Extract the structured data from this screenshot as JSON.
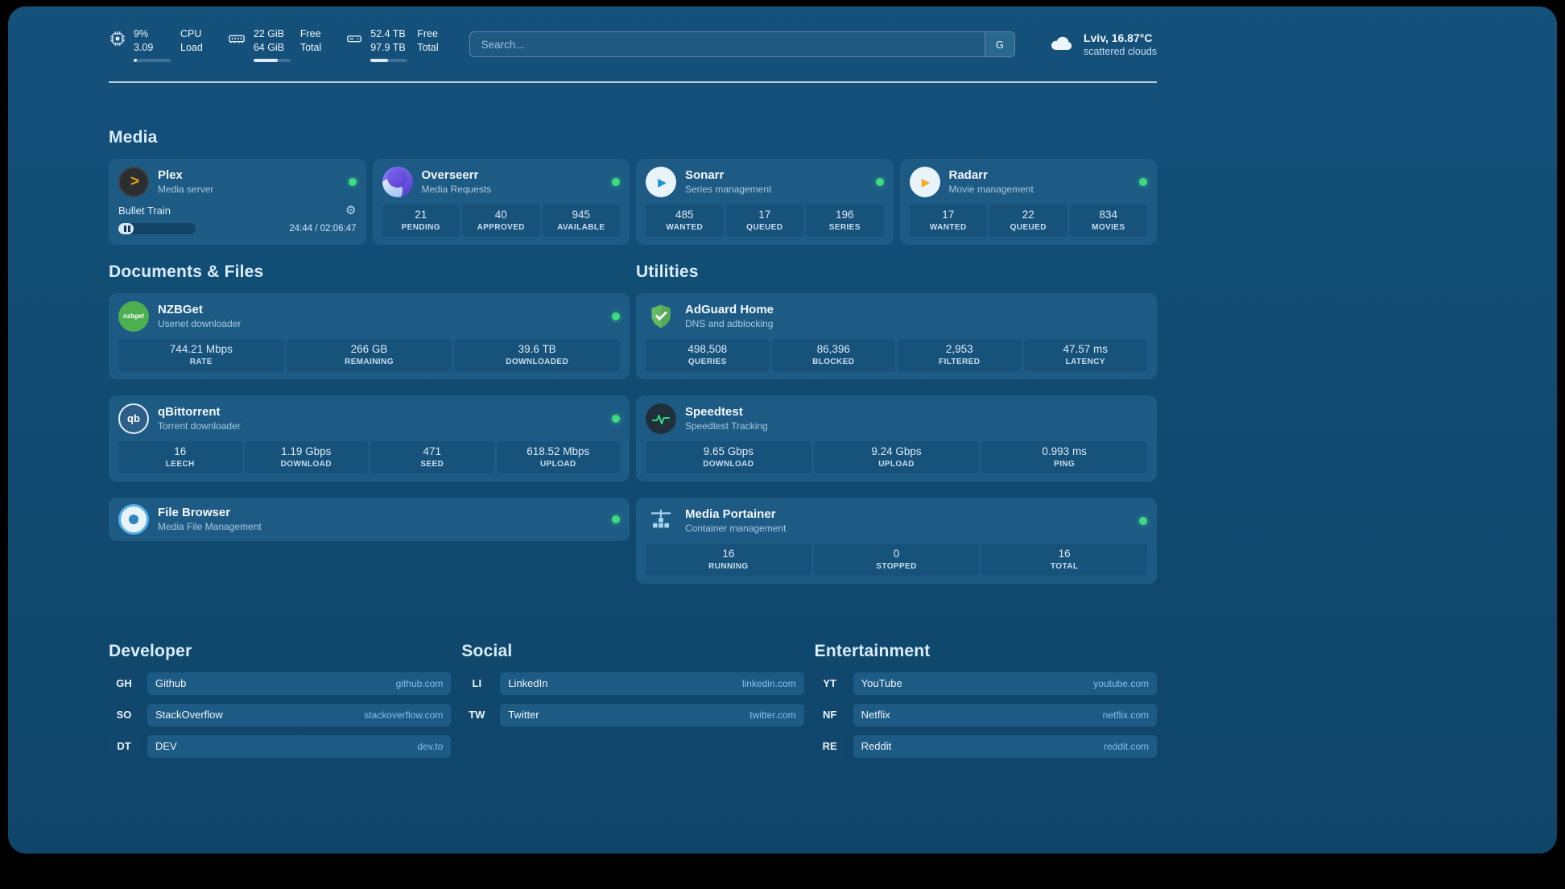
{
  "topbar": {
    "cpu": {
      "value1": "9%",
      "value2": "3.09",
      "label1": "CPU",
      "label2": "Load",
      "used_percent": 9
    },
    "ram": {
      "value1": "22 GiB",
      "value2": "64 GiB",
      "label1": "Free",
      "label2": "Total",
      "used_percent": 66
    },
    "disk": {
      "value1": "52.4 TB",
      "value2": "97.9 TB",
      "label1": "Free",
      "label2": "Total",
      "used_percent": 47
    },
    "search": {
      "placeholder": "Search...",
      "engine_button": "G"
    },
    "weather": {
      "location": "Lviv, 16.87°C",
      "condition": "scattered clouds"
    }
  },
  "sections": {
    "media": {
      "title": "Media"
    },
    "documents": {
      "title": "Documents & Files"
    },
    "utilities": {
      "title": "Utilities"
    },
    "developer": {
      "title": "Developer"
    },
    "social": {
      "title": "Social"
    },
    "entertainment": {
      "title": "Entertainment"
    }
  },
  "media_cards": {
    "plex": {
      "name": "Plex",
      "subtitle": "Media server",
      "now_playing": "Bullet Train",
      "time": "24:44 / 02:06:47",
      "progress_percent": 20
    },
    "overseerr": {
      "name": "Overseerr",
      "subtitle": "Media Requests",
      "stats": [
        {
          "value": "21",
          "label": "PENDING"
        },
        {
          "value": "40",
          "label": "APPROVED"
        },
        {
          "value": "945",
          "label": "AVAILABLE"
        }
      ]
    },
    "sonarr": {
      "name": "Sonarr",
      "subtitle": "Series management",
      "stats": [
        {
          "value": "485",
          "label": "WANTED"
        },
        {
          "value": "17",
          "label": "QUEUED"
        },
        {
          "value": "196",
          "label": "SERIES"
        }
      ]
    },
    "radarr": {
      "name": "Radarr",
      "subtitle": "Movie management",
      "stats": [
        {
          "value": "17",
          "label": "WANTED"
        },
        {
          "value": "22",
          "label": "QUEUED"
        },
        {
          "value": "834",
          "label": "MOVIES"
        }
      ]
    }
  },
  "document_cards": {
    "nzbget": {
      "name": "NZBGet",
      "subtitle": "Usenet downloader",
      "icon_text": "nzbget",
      "stats": [
        {
          "value": "744.21 Mbps",
          "label": "RATE"
        },
        {
          "value": "266 GB",
          "label": "REMAINING"
        },
        {
          "value": "39.6 TB",
          "label": "DOWNLOADED"
        }
      ]
    },
    "qbittorrent": {
      "name": "qBittorrent",
      "subtitle": "Torrent downloader",
      "icon_text": "qb",
      "stats": [
        {
          "value": "16",
          "label": "LEECH"
        },
        {
          "value": "1.19 Gbps",
          "label": "DOWNLOAD"
        },
        {
          "value": "471",
          "label": "SEED"
        },
        {
          "value": "618.52 Mbps",
          "label": "UPLOAD"
        }
      ]
    },
    "filebrowser": {
      "name": "File Browser",
      "subtitle": "Media File Management"
    }
  },
  "utility_cards": {
    "adguard": {
      "name": "AdGuard Home",
      "subtitle": "DNS and adblocking",
      "stats": [
        {
          "value": "498,508",
          "label": "QUERIES"
        },
        {
          "value": "86,396",
          "label": "BLOCKED"
        },
        {
          "value": "2,953",
          "label": "FILTERED"
        },
        {
          "value": "47.57 ms",
          "label": "LATENCY"
        }
      ]
    },
    "speedtest": {
      "name": "Speedtest",
      "subtitle": "Speedtest Tracking",
      "stats": [
        {
          "value": "9.65 Gbps",
          "label": "DOWNLOAD"
        },
        {
          "value": "9.24 Gbps",
          "label": "UPLOAD"
        },
        {
          "value": "0.993 ms",
          "label": "PING"
        }
      ]
    },
    "portainer": {
      "name": "Media Portainer",
      "subtitle": "Container management",
      "stats": [
        {
          "value": "16",
          "label": "RUNNING"
        },
        {
          "value": "0",
          "label": "STOPPED"
        },
        {
          "value": "16",
          "label": "TOTAL"
        }
      ]
    }
  },
  "links": {
    "developer": [
      {
        "abbr": "GH",
        "name": "Github",
        "domain": "github.com"
      },
      {
        "abbr": "SO",
        "name": "StackOverflow",
        "domain": "stackoverflow.com"
      },
      {
        "abbr": "DT",
        "name": "DEV",
        "domain": "dev.to"
      }
    ],
    "social": [
      {
        "abbr": "LI",
        "name": "LinkedIn",
        "domain": "linkedin.com"
      },
      {
        "abbr": "TW",
        "name": "Twitter",
        "domain": "twitter.com"
      }
    ],
    "entertainment": [
      {
        "abbr": "YT",
        "name": "YouTube",
        "domain": "youtube.com"
      },
      {
        "abbr": "NF",
        "name": "Netflix",
        "domain": "netflix.com"
      },
      {
        "abbr": "RE",
        "name": "Reddit",
        "domain": "reddit.com"
      }
    ]
  },
  "colors": {
    "status_online": "#3fd97f",
    "accent_heading": "#d9ecfa",
    "link_domain": "#7fc2ea"
  }
}
